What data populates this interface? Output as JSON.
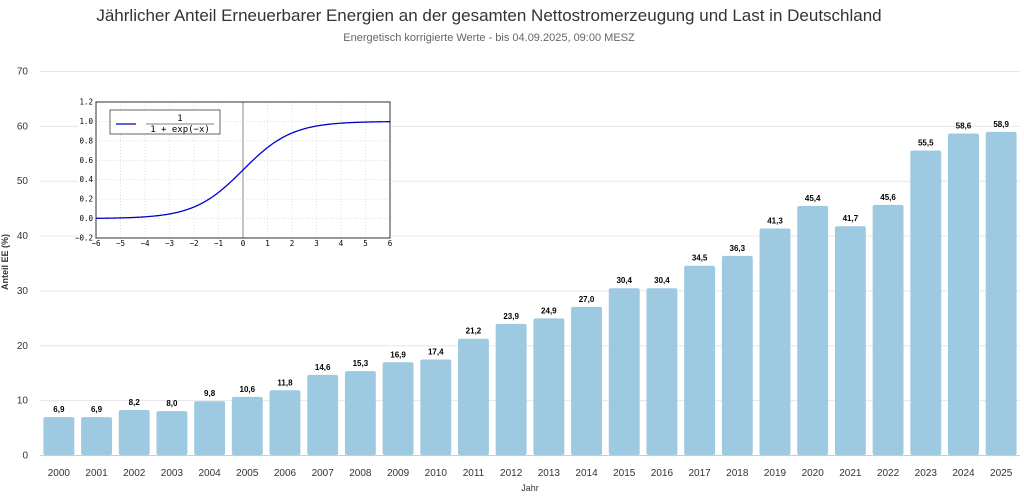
{
  "chart_data": [
    {
      "type": "bar",
      "title": "Jährlicher Anteil Erneuerbarer Energien an der gesamten Nettostromerzeugung und Last in Deutschland",
      "subtitle": "Energetisch korrigierte Werte - bis 04.09.2025, 09:00 MESZ",
      "xlabel": "Jahr",
      "ylabel": "Anteil EE (%)",
      "ylim": [
        0,
        70
      ],
      "yticks": [
        0,
        10,
        20,
        30,
        40,
        50,
        60,
        70
      ],
      "grid": true,
      "categories": [
        "2000",
        "2001",
        "2002",
        "2003",
        "2004",
        "2005",
        "2006",
        "2007",
        "2008",
        "2009",
        "2010",
        "2011",
        "2012",
        "2013",
        "2014",
        "2015",
        "2016",
        "2017",
        "2018",
        "2019",
        "2020",
        "2021",
        "2022",
        "2023",
        "2024",
        "2025"
      ],
      "values": [
        6.9,
        6.9,
        8.2,
        8.0,
        9.8,
        10.6,
        11.8,
        14.6,
        15.3,
        16.9,
        17.4,
        21.2,
        23.9,
        24.9,
        27.0,
        30.4,
        30.4,
        34.5,
        36.3,
        41.3,
        45.4,
        41.7,
        45.6,
        55.5,
        58.6,
        58.9
      ],
      "value_labels": [
        "6,9",
        "6,9",
        "8,2",
        "8,0",
        "9,8",
        "10,6",
        "11,8",
        "14,6",
        "15,3",
        "16,9",
        "17,4",
        "21,2",
        "23,9",
        "24,9",
        "27,0",
        "30,4",
        "30,4",
        "34,5",
        "36,3",
        "41,3",
        "45,4",
        "41,7",
        "45,6",
        "55,5",
        "58,6",
        "58,9"
      ],
      "bar_color": "#9ecae1"
    },
    {
      "type": "line",
      "title": "",
      "xlim": [
        -6,
        6
      ],
      "ylim": [
        -0.2,
        1.2
      ],
      "xticks": [
        -6,
        -5,
        -4,
        -3,
        -2,
        -1,
        0,
        1,
        2,
        3,
        4,
        5,
        6
      ],
      "xtick_labels": [
        "−6",
        "−5",
        "−4",
        "−3",
        "−2",
        "−1",
        "0",
        "1",
        "2",
        "3",
        "4",
        "5",
        "6"
      ],
      "yticks": [
        -0.2,
        0.0,
        0.2,
        0.4,
        0.6,
        0.8,
        1.0,
        1.2
      ],
      "ytick_labels": [
        "−0.2",
        "0.0",
        "0.2",
        "0.4",
        "0.6",
        "0.8",
        "1.0",
        "1.2"
      ],
      "grid": true,
      "legend_placement": "top-left",
      "series": [
        {
          "name_numerator": "1",
          "name_denominator": "1 + exp(−x)",
          "function": "sigmoid",
          "color": "#0000cc"
        }
      ]
    }
  ]
}
